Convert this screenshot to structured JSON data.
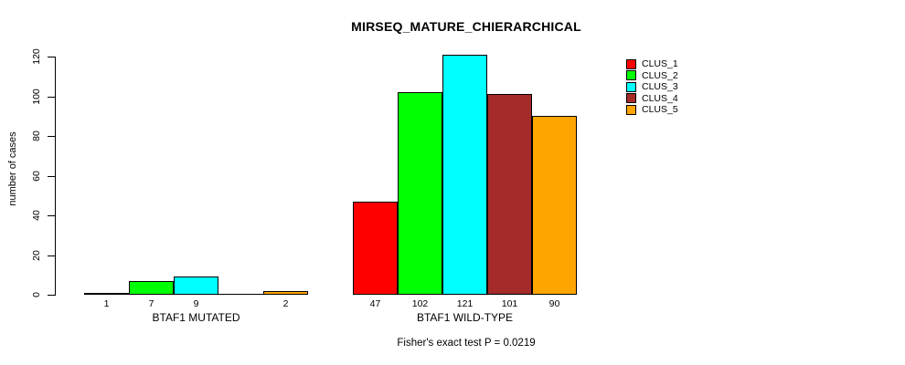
{
  "chart_data": {
    "type": "bar",
    "title": "MIRSEQ_MATURE_CHIERARCHICAL",
    "ylabel": "number of cases",
    "xlabel": "",
    "annotation": "Fisher's exact test P = 0.0219",
    "yticks": [
      0,
      20,
      40,
      60,
      80,
      100,
      120
    ],
    "ylim": [
      0,
      121
    ],
    "grid": false,
    "legend_position": "right-outside-top",
    "series": [
      "CLUS_1",
      "CLUS_2",
      "CLUS_3",
      "CLUS_4",
      "CLUS_5"
    ],
    "series_colors": [
      "#ff0000",
      "#00ff00",
      "#00ffff",
      "#a52a2a",
      "#ffa500"
    ],
    "groups": [
      {
        "label": "BTAF1 MUTATED",
        "values": [
          1,
          7,
          9,
          0,
          2
        ],
        "bar_labels": [
          "1",
          "7",
          "9",
          null,
          "2"
        ]
      },
      {
        "label": "BTAF1 WILD-TYPE",
        "values": [
          47,
          102,
          121,
          101,
          90
        ],
        "bar_labels": [
          "47",
          "102",
          "121",
          "101",
          "90"
        ]
      }
    ]
  }
}
